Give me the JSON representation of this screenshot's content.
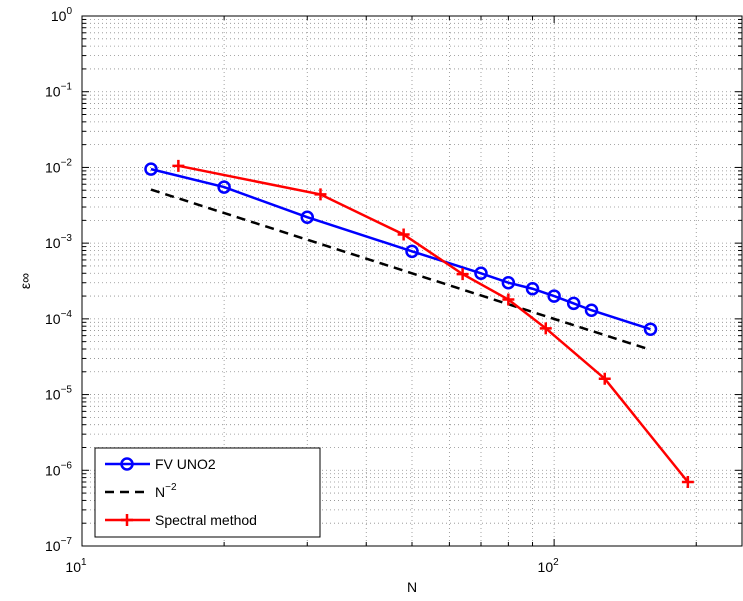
{
  "chart_data": {
    "type": "line",
    "xscale": "log",
    "yscale": "log",
    "xlim": [
      10,
      250
    ],
    "ylim": [
      1e-07,
      1
    ],
    "grid": "both-minor-dotted",
    "xlabel": "N",
    "ylabel": "ε∞",
    "x_ticks": [
      {
        "base": "10",
        "exp": "1",
        "value": 10
      },
      {
        "base": "10",
        "exp": "2",
        "value": 100
      }
    ],
    "y_ticks": [
      {
        "base": "10",
        "exp": "0",
        "value": 1
      },
      {
        "base": "10",
        "exp": "−1",
        "value": 0.1
      },
      {
        "base": "10",
        "exp": "−2",
        "value": 0.01
      },
      {
        "base": "10",
        "exp": "−3",
        "value": 0.001
      },
      {
        "base": "10",
        "exp": "−4",
        "value": 0.0001
      },
      {
        "base": "10",
        "exp": "−5",
        "value": 1e-05
      },
      {
        "base": "10",
        "exp": "−6",
        "value": 1e-06
      },
      {
        "base": "10",
        "exp": "−7",
        "value": 1e-07
      }
    ],
    "legend_position": "bottom-left",
    "series": [
      {
        "name": "FV UNO2",
        "color": "#0000ff",
        "line_style": "solid",
        "marker": "circle",
        "x": [
          14,
          20,
          30,
          50,
          70,
          80,
          90,
          100,
          110,
          120,
          160
        ],
        "y": [
          0.0095,
          0.0055,
          0.0022,
          0.00078,
          0.0004,
          0.0003,
          0.00025,
          0.0002,
          0.00016,
          0.00013,
          7.3e-05
        ]
      },
      {
        "name": "N",
        "name_sup": "−2",
        "color": "#000000",
        "line_style": "dashed",
        "marker": "none",
        "x": [
          14,
          160
        ],
        "y": [
          0.0051,
          3.9e-05
        ]
      },
      {
        "name": "Spectral method",
        "color": "#ff0000",
        "line_style": "solid",
        "marker": "plus",
        "x": [
          16,
          32,
          48,
          64,
          80,
          96,
          128,
          192
        ],
        "y": [
          0.0105,
          0.0044,
          0.0013,
          0.00039,
          0.00018,
          7.5e-05,
          1.62e-05,
          7e-07
        ]
      }
    ]
  }
}
